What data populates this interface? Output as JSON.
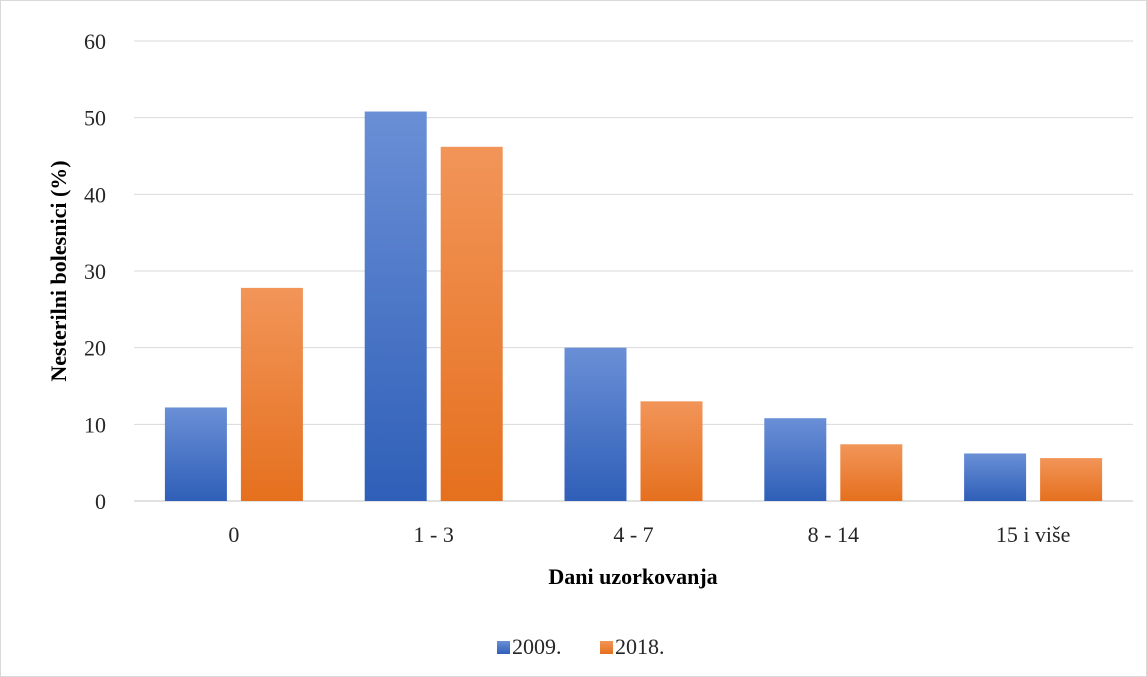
{
  "chart_data": {
    "type": "bar",
    "categories": [
      "0",
      "1 - 3",
      "4 - 7",
      "8 - 14",
      "15 i više"
    ],
    "series": [
      {
        "name": "2009.",
        "values": [
          12.2,
          50.8,
          20.0,
          10.8,
          6.2
        ],
        "color": "#4472C4",
        "gradient_light": "#6A8FD6",
        "gradient_dark": "#2F5FB8"
      },
      {
        "name": "2018.",
        "values": [
          27.8,
          46.2,
          13.0,
          7.4,
          5.6
        ],
        "color": "#ED7D31",
        "gradient_light": "#F29559",
        "gradient_dark": "#E5701E"
      }
    ],
    "xlabel": "Dani uzorkovanja",
    "ylabel": "Nesterilni bolesnici (%)",
    "ylim": [
      0,
      60
    ],
    "yticks": [
      "0",
      "10",
      "20",
      "30",
      "40",
      "50",
      "60"
    ],
    "grid": true,
    "legend_position": "bottom",
    "gridline_color": "#D9D9D9",
    "frame_color": "#D9D9D9"
  }
}
